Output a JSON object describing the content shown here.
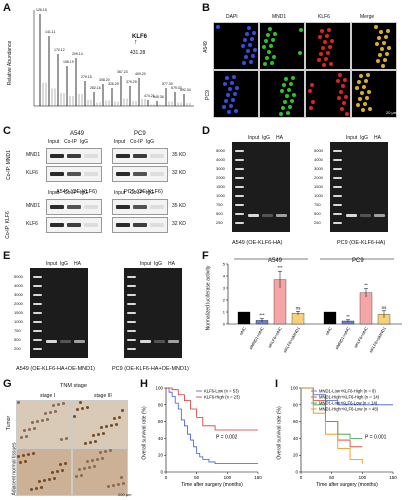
{
  "panels": {
    "A": "A",
    "B": "B",
    "C": "C",
    "D": "D",
    "E": "E",
    "F": "F",
    "G": "G",
    "H": "H",
    "I": "I"
  },
  "a": {
    "ylabel": "Relative Abundance",
    "klf6": "KLF6",
    "klf6_mz": "431.28",
    "peaks": [
      {
        "label": "126.15"
      },
      {
        "label": "141.11"
      },
      {
        "label": "170.12"
      },
      {
        "label": "198.19"
      },
      {
        "label": "209.14"
      },
      {
        "label": "279.15"
      },
      {
        "label": "282.16"
      },
      {
        "label": "308.20"
      },
      {
        "label": "326.29"
      },
      {
        "label": "367.23"
      },
      {
        "label": "379.29"
      },
      {
        "label": "409.20"
      },
      {
        "label": "474.21"
      },
      {
        "label": "545.36"
      },
      {
        "label": "577.30"
      },
      {
        "label": "579.33"
      },
      {
        "label": "692.34"
      }
    ]
  },
  "b": {
    "cols": [
      "DAPI",
      "MND1",
      "KLF6",
      "Merge"
    ],
    "rows": [
      "A549",
      "PC9"
    ],
    "scale": "20 μm"
  },
  "c": {
    "groups": [
      "A549",
      "PC9"
    ],
    "lanes": [
      "Input",
      "Co-IP",
      "IgG"
    ],
    "ip1": "Co-IP: MND1",
    "ip2": "Co-IP: KLF6",
    "bands1": [
      "MND1",
      "KLF6"
    ],
    "bands2": [
      "MND1",
      "KLF6"
    ],
    "sizes1": [
      "35 KD",
      "32 KD"
    ],
    "sizes2": [
      "35 KD",
      "32 KD"
    ],
    "oe_a549": "A549 (OE-KLF6)",
    "oe_pc9": "PC9 (OE-KLF6)"
  },
  "d": {
    "lanes": [
      "Input",
      "IgG",
      "HA"
    ],
    "ladder": [
      "5000",
      "4000",
      "3000",
      "2000",
      "1500",
      "1000",
      "750",
      "500",
      "250"
    ],
    "cap1": "A549 (OE-KLF6-HA)",
    "cap2": "PC9 (OE-KLF6-HA)"
  },
  "e": {
    "lanes": [
      "Input",
      "IgG",
      "HA"
    ],
    "ladder": [
      "5000",
      "4000",
      "3000",
      "2000",
      "1500",
      "1000",
      "750",
      "500",
      "200"
    ],
    "cap1": "A549 (OE-KLF6-HA+OE-MND1)",
    "cap2": "PC9 (OE-KLF6-HA+OE-MND1)"
  },
  "f": {
    "ylabel": "Normalized luciferase activity",
    "groups": [
      "A549",
      "PC9"
    ],
    "yticks": [
      "0",
      "1",
      "2",
      "3",
      "4",
      "5"
    ],
    "chart_data": {
      "type": "bar",
      "categories": [
        "siNC",
        "siMND1+siNC",
        "siKLF6+siNC",
        "siKLF6+siMND1",
        "siNC",
        "siMND1+siNC",
        "siKLF6+siNC",
        "siKLF6+siMND1"
      ],
      "values": [
        1.0,
        0.3,
        3.7,
        0.9,
        1.0,
        0.25,
        2.6,
        0.8
      ],
      "errors": [
        0,
        0.15,
        0.7,
        0.15,
        0,
        0.1,
        0.35,
        0.3
      ],
      "sig": [
        "",
        "***",
        "***",
        "ns",
        "",
        "**",
        "**",
        "ns"
      ],
      "colors": [
        "#000000",
        "#6b7fd7",
        "#f4a6a6",
        "#f5d27a"
      ],
      "ylim": [
        0,
        5
      ]
    }
  },
  "g": {
    "title": "TNM stage",
    "cols": [
      "stage I",
      "stage III"
    ],
    "rows": [
      "Tumor",
      "Adjacent normal tissues"
    ],
    "scale": "200 μm"
  },
  "h": {
    "ylabel": "Overall survival rate (%)",
    "xlabel": "Time after surgery (months)",
    "p": "P = 0.002",
    "xticks": [
      "0",
      "50",
      "100",
      "150"
    ],
    "yticks": [
      "0",
      "20",
      "40",
      "60",
      "80",
      "100"
    ],
    "chart_data": {
      "type": "line",
      "xlim": [
        0,
        150
      ],
      "ylim": [
        0,
        100
      ],
      "series": [
        {
          "name": "KLF6-Low (n = 53)",
          "color": "#3b5bdb",
          "x": [
            0,
            5,
            10,
            15,
            20,
            25,
            30,
            35,
            40,
            45,
            50,
            55,
            60,
            70,
            80,
            150
          ],
          "y": [
            100,
            95,
            90,
            82,
            75,
            62,
            55,
            45,
            38,
            30,
            22,
            18,
            15,
            12,
            10,
            10
          ]
        },
        {
          "name": "KLF6-High (n = 23)",
          "color": "#e03131",
          "x": [
            0,
            10,
            20,
            30,
            40,
            50,
            60,
            80,
            100,
            150
          ],
          "y": [
            100,
            98,
            92,
            85,
            75,
            65,
            55,
            50,
            50,
            50
          ]
        }
      ]
    }
  },
  "i": {
    "ylabel": "Overall survival rate (%)",
    "xlabel": "Time after surgery (months)",
    "p": "P = 0.001",
    "xticks": [
      "0",
      "50",
      "100",
      "150"
    ],
    "yticks": [
      "0",
      "20",
      "40",
      "60",
      "80",
      "100"
    ],
    "chart_data": {
      "type": "line",
      "xlim": [
        0,
        150
      ],
      "ylim": [
        0,
        100
      ],
      "series": [
        {
          "name": "MND1-Low+KLF6-High (n = 8)",
          "color": "#3b5bdb",
          "x": [
            0,
            20,
            40,
            60,
            100,
            130,
            150
          ],
          "y": [
            100,
            92,
            85,
            80,
            80,
            80,
            80
          ]
        },
        {
          "name": "MND1-High+KLF6-High (n = 14)",
          "color": "#e03131",
          "x": [
            0,
            20,
            40,
            60,
            80,
            100
          ],
          "y": [
            100,
            85,
            60,
            38,
            30,
            30
          ]
        },
        {
          "name": "MND1-Low+KLF6-Low (n = 14)",
          "color": "#2f9e44",
          "x": [
            0,
            20,
            40,
            60,
            80,
            100
          ],
          "y": [
            100,
            80,
            60,
            45,
            40,
            40
          ]
        },
        {
          "name": "MND1-High+KLF6-Low (n = 48)",
          "color": "#f08c00",
          "x": [
            0,
            20,
            40,
            60,
            80,
            100
          ],
          "y": [
            100,
            70,
            45,
            28,
            15,
            10
          ]
        }
      ]
    }
  }
}
